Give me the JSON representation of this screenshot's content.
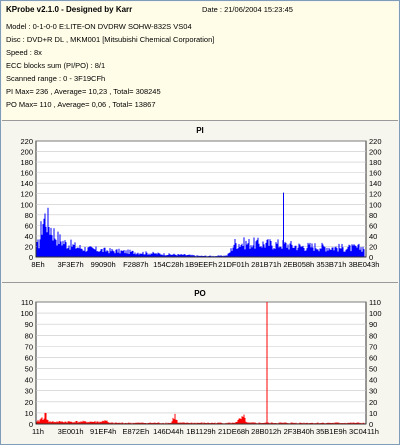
{
  "info": {
    "title": "KProbe v2.1.0 - Designed by Karr",
    "date": "Date : 21/06/2004 15:23:45",
    "model": "Model : 0-1-0-0 E:LITE-ON DVDRW SOHW-832S  VS04",
    "disc": "Disc : DVD+R DL , MKM001 [Mitsubishi Chemical Corporation]",
    "speed": "Speed : 8x",
    "ecc": "ECC blocks sum (PI/PO) : 8/1",
    "range": "Scanned range : 0 - 3F19CFh",
    "pi_stats": "PI Max= 236 , Average= 10,23 , Total= 308245",
    "po_stats": "PO Max= 110 , Average= 0,06 , Total= 13867"
  },
  "colors": {
    "pi": "#0000ff",
    "po": "#ff0000",
    "panel_bg": "#f6f5ee",
    "info_bg": "#fffde8"
  },
  "chart_data": [
    {
      "type": "area",
      "title": "PI",
      "yticks": [
        "0",
        "20",
        "40",
        "60",
        "80",
        "100",
        "120",
        "140",
        "160",
        "180",
        "200",
        "220"
      ],
      "ylim": [
        0,
        220
      ],
      "xticks": [
        "8Eh",
        "3F3E7h",
        "99090h",
        "F2887h",
        "154C28h",
        "1B9EEFh",
        "21DF01h",
        "281B71h",
        "2EB058h",
        "353B71h",
        "3BE043h"
      ],
      "grid": true,
      "series_color": "#0000ff",
      "note_max": 236,
      "profile": [
        {
          "x": 0,
          "y": 18
        },
        {
          "x": 1,
          "y": 28
        },
        {
          "x": 2,
          "y": 70
        },
        {
          "x": 3,
          "y": 76
        },
        {
          "x": 4,
          "y": 62
        },
        {
          "x": 5,
          "y": 50
        },
        {
          "x": 6,
          "y": 40
        },
        {
          "x": 7,
          "y": 34
        },
        {
          "x": 8,
          "y": 30
        },
        {
          "x": 9,
          "y": 26
        },
        {
          "x": 10,
          "y": 24
        },
        {
          "x": 12,
          "y": 20
        },
        {
          "x": 14,
          "y": 17
        },
        {
          "x": 16,
          "y": 15
        },
        {
          "x": 18,
          "y": 14
        },
        {
          "x": 20,
          "y": 13
        },
        {
          "x": 25,
          "y": 11
        },
        {
          "x": 30,
          "y": 9
        },
        {
          "x": 35,
          "y": 7
        },
        {
          "x": 40,
          "y": 5
        },
        {
          "x": 45,
          "y": 4
        },
        {
          "x": 50,
          "y": 2
        },
        {
          "x": 55,
          "y": 2
        },
        {
          "x": 58,
          "y": 3
        },
        {
          "x": 59,
          "y": 12
        },
        {
          "x": 60,
          "y": 26
        },
        {
          "x": 65,
          "y": 26
        },
        {
          "x": 70,
          "y": 25
        },
        {
          "x": 75,
          "y": 24
        },
        {
          "x": 80,
          "y": 20
        },
        {
          "x": 85,
          "y": 20
        },
        {
          "x": 90,
          "y": 18
        },
        {
          "x": 95,
          "y": 17
        },
        {
          "x": 100,
          "y": 18
        }
      ],
      "spike": {
        "x": 75,
        "y": 122
      }
    },
    {
      "type": "area",
      "title": "PO",
      "yticks": [
        "0",
        "10",
        "20",
        "30",
        "40",
        "50",
        "60",
        "70",
        "80",
        "90",
        "100",
        "110"
      ],
      "ylim": [
        0,
        110
      ],
      "xticks": [
        "11h",
        "3E001h",
        "91EF4h",
        "E872Eh",
        "146D44h",
        "1B1129h",
        "21DE68h",
        "28B012h",
        "2F3B40h",
        "35B1E9h",
        "3C0411h"
      ],
      "grid": true,
      "series_color": "#ff0000",
      "note_max": 110,
      "profile": [
        {
          "x": 0,
          "y": 1
        },
        {
          "x": 3,
          "y": 8
        },
        {
          "x": 4,
          "y": 2
        },
        {
          "x": 20,
          "y": 2
        },
        {
          "x": 21,
          "y": 4
        },
        {
          "x": 22,
          "y": 1
        },
        {
          "x": 41,
          "y": 1
        },
        {
          "x": 42,
          "y": 8
        },
        {
          "x": 43,
          "y": 1
        },
        {
          "x": 60,
          "y": 1
        },
        {
          "x": 63,
          "y": 6
        },
        {
          "x": 64,
          "y": 1
        },
        {
          "x": 100,
          "y": 1
        }
      ],
      "spike": {
        "x": 70,
        "y": 110
      }
    }
  ]
}
